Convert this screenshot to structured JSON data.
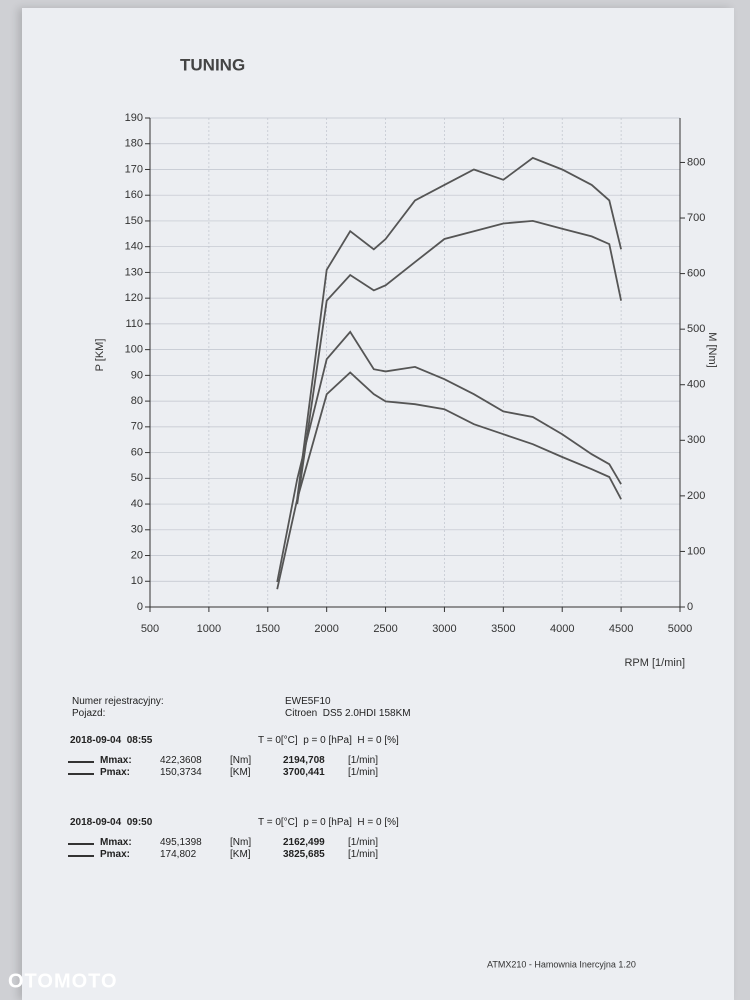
{
  "chart_data": {
    "type": "line",
    "x": [
      1580,
      1750,
      2000,
      2200,
      2400,
      2500,
      2750,
      3000,
      3250,
      3500,
      3750,
      4000,
      4250,
      4400,
      4500
    ],
    "series": [
      {
        "color": "#555555",
        "axis": "y",
        "values": [
          null,
          42,
          131,
          146,
          139,
          143,
          158,
          164,
          170,
          166,
          174.5,
          170,
          164,
          158,
          139
        ]
      },
      {
        "color": "#555555",
        "axis": "y",
        "values": [
          null,
          40,
          119,
          129,
          123,
          125,
          134,
          143,
          146,
          149,
          150,
          147,
          144,
          141,
          119
        ]
      },
      {
        "color": "#555555",
        "axis": "y2",
        "values": [
          45,
          230,
          446,
          495,
          428,
          424,
          432,
          410,
          383,
          352,
          342,
          311,
          275,
          257,
          221
        ]
      },
      {
        "color": "#555555",
        "axis": "y2",
        "values": [
          32,
          194,
          383,
          422,
          383,
          370,
          365,
          356,
          329,
          311,
          293,
          270,
          248,
          234,
          194
        ]
      }
    ],
    "xlim": [
      500,
      5000
    ],
    "xticks": [
      500,
      1000,
      1500,
      2000,
      2500,
      3000,
      3500,
      4000,
      4500,
      5000
    ],
    "ylim": [
      0,
      190
    ],
    "yticks": [
      0,
      10,
      20,
      30,
      40,
      50,
      60,
      70,
      80,
      90,
      100,
      110,
      120,
      130,
      140,
      150,
      160,
      170,
      180,
      190
    ],
    "y2lim": [
      0,
      880
    ],
    "y2ticks": [
      0,
      100,
      200,
      300,
      400,
      500,
      600,
      700,
      800
    ],
    "ylabel": "P [KM]",
    "y2label": "M [Nm]",
    "xlabel": "RPM [1/min]",
    "grid": true
  },
  "logo": "TUNING",
  "report": {
    "reg_label": "Numer rejestracyjny:",
    "vehicle_label": "Pojazd:",
    "reg": "EWE5F10",
    "vehicle": "Citroen  DS5 2.0HDI 158KM",
    "runs": [
      {
        "date": "2018-09-04  08:55",
        "conditions": "T = 0[°C]  p = 0 [hPa]  H = 0 [%]",
        "rows": [
          [
            "Mmax:",
            "422,3608",
            "[Nm]",
            "2194,708",
            "[1/min]"
          ],
          [
            "Pmax:",
            "150,3734",
            "[KM]",
            "3700,441",
            "[1/min]"
          ]
        ]
      },
      {
        "date": "2018-09-04  09:50",
        "conditions": "T = 0[°C]  p = 0 [hPa]  H = 0 [%]",
        "rows": [
          [
            "Mmax:",
            "495,1398",
            "[Nm]",
            "2162,499",
            "[1/min]"
          ],
          [
            "Pmax:",
            "174,802",
            "[KM]",
            "3825,685",
            "[1/min]"
          ]
        ]
      }
    ]
  },
  "footer": "ATMX210 - Hamownia Inercyjna 1.20",
  "watermark": "OTOMOTO"
}
